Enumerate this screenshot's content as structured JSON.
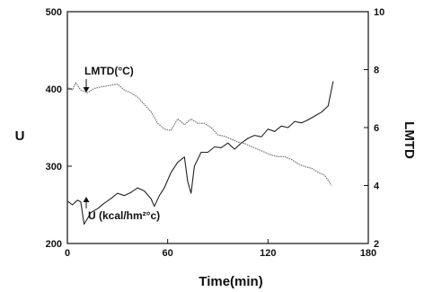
{
  "chart_data": {
    "type": "line",
    "title": "",
    "xlabel": "Time(min)",
    "ylabel": "U",
    "y2label": "LMTD",
    "xlim": [
      0,
      180
    ],
    "ylim": [
      200,
      500
    ],
    "y2lim": [
      2,
      10
    ],
    "x_ticks": [
      0,
      60,
      120,
      180
    ],
    "y_ticks": [
      200,
      300,
      400,
      500
    ],
    "y2_ticks": [
      2,
      4,
      6,
      8,
      10
    ],
    "grid": false,
    "legend": "none",
    "annotations": [
      {
        "text": "LMTD(°C)",
        "points_to": "LMTD"
      },
      {
        "text": "U (kcal/hm²°c)",
        "points_to": "U"
      }
    ],
    "series": [
      {
        "axis": "left",
        "color": "#222222",
        "x": [
          0,
          3,
          6,
          8,
          10,
          12,
          14,
          18,
          22,
          26,
          30,
          34,
          38,
          42,
          46,
          50,
          52,
          55,
          58,
          62,
          66,
          70,
          72,
          74,
          76,
          80,
          84,
          88,
          92,
          96,
          100,
          104,
          108,
          112,
          116,
          120,
          124,
          128,
          132,
          136,
          140,
          144,
          148,
          152,
          156,
          159
        ],
        "y": [
          255,
          250,
          256,
          254,
          225,
          232,
          240,
          245,
          252,
          258,
          265,
          262,
          266,
          272,
          268,
          258,
          248,
          262,
          272,
          292,
          305,
          312,
          280,
          265,
          300,
          318,
          318,
          325,
          324,
          330,
          322,
          330,
          336,
          340,
          338,
          348,
          345,
          352,
          350,
          358,
          356,
          360,
          365,
          370,
          378,
          410
        ]
      },
      {
        "axis": "right",
        "color": "#666666",
        "x": [
          0,
          3,
          5,
          8,
          12,
          16,
          20,
          25,
          30,
          34,
          38,
          42,
          46,
          50,
          54,
          58,
          62,
          66,
          70,
          74,
          78,
          82,
          86,
          90,
          94,
          98,
          102,
          106,
          110,
          114,
          118,
          122,
          126,
          130,
          134,
          138,
          142,
          146,
          150,
          154,
          158
        ],
        "y": [
          7.4,
          7.3,
          7.55,
          7.3,
          7.2,
          7.35,
          7.4,
          7.45,
          7.5,
          7.3,
          7.2,
          7.05,
          6.8,
          6.55,
          6.15,
          5.95,
          5.9,
          6.3,
          6.1,
          6.3,
          6.15,
          6.15,
          6.0,
          5.75,
          5.7,
          5.6,
          5.5,
          5.45,
          5.35,
          5.25,
          5.15,
          5.05,
          5.0,
          5.0,
          4.9,
          4.75,
          4.65,
          4.6,
          4.45,
          4.35,
          4.0
        ]
      }
    ]
  }
}
